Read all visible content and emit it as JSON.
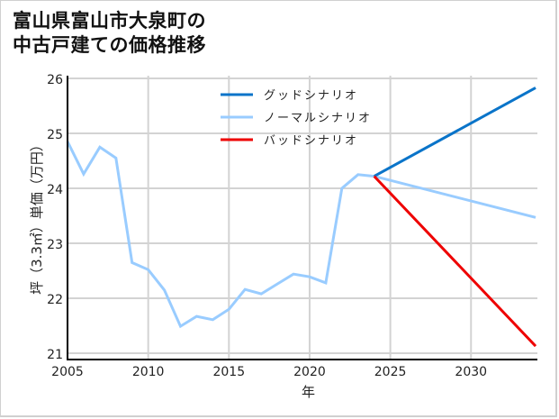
{
  "title": {
    "line1": "富山県富山市大泉町の",
    "line2": "中古戸建ての価格推移"
  },
  "colors": {
    "good": "#0a74c9",
    "normal": "#99ccff",
    "bad": "#ee0000",
    "grid": "#d3d3d3",
    "axis": "#000000"
  },
  "chart_data": {
    "type": "line",
    "title": "富山県富山市大泉町の中古戸建ての価格推移",
    "xlabel": "年",
    "ylabel": "坪（3.3㎡）単価（万円）",
    "xlim": [
      2005,
      2034
    ],
    "ylim": [
      21,
      26
    ],
    "x_ticks": [
      "2005",
      "2010",
      "2015",
      "2020",
      "2025",
      "2030"
    ],
    "y_ticks": [
      "21",
      "22",
      "23",
      "24",
      "25",
      "26"
    ],
    "grid": true,
    "legend_position": "upper center",
    "series": [
      {
        "name": "グッドシナリオ",
        "color": "#0a74c9",
        "x": [
          2024,
          2034
        ],
        "values": [
          24.22,
          25.83
        ]
      },
      {
        "name": "ノーマルシナリオ",
        "color": "#99ccff",
        "x": [
          2005,
          2006,
          2007,
          2008,
          2009,
          2010,
          2011,
          2012,
          2013,
          2014,
          2015,
          2016,
          2017,
          2018,
          2019,
          2020,
          2021,
          2022,
          2023,
          2024,
          2034
        ],
        "values": [
          24.85,
          24.26,
          24.75,
          24.55,
          22.65,
          22.52,
          22.15,
          21.49,
          21.67,
          21.61,
          21.8,
          22.16,
          22.08,
          22.26,
          22.44,
          22.39,
          22.28,
          24.0,
          24.25,
          24.22,
          23.47
        ]
      },
      {
        "name": "バッドシナリオ",
        "color": "#ee0000",
        "x": [
          2024,
          2034
        ],
        "values": [
          24.22,
          21.13
        ]
      }
    ]
  },
  "legend": {
    "good": "グッドシナリオ",
    "normal": "ノーマルシナリオ",
    "bad": "バッドシナリオ"
  },
  "axes": {
    "xlabel": "年",
    "ylabel": "坪（3.3㎡）単価（万円）",
    "x_ticks": [
      "2005",
      "2010",
      "2015",
      "2020",
      "2025",
      "2030"
    ],
    "y_ticks": [
      "26",
      "25",
      "24",
      "23",
      "22",
      "21"
    ]
  }
}
